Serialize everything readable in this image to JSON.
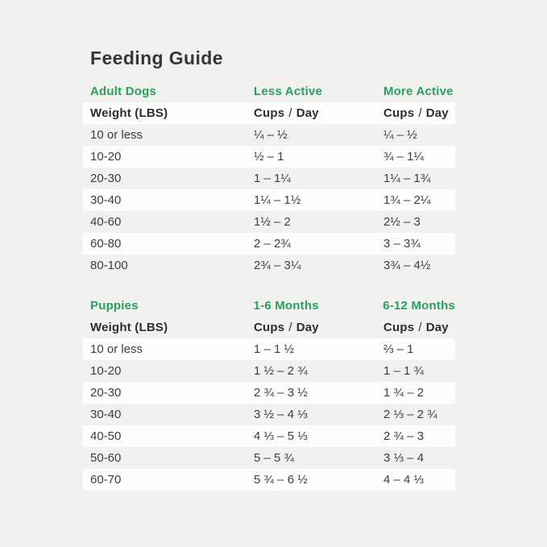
{
  "page_title": "Feeding Guide",
  "colors": {
    "background": "#f1f1ef",
    "row_band_white": "#fdfdfd",
    "accent_green": "#28a05b",
    "text_dark": "#3a3938"
  },
  "adult_table": {
    "heading": {
      "col1": "Adult Dogs",
      "col2": "Less Active",
      "col3": "More Active"
    },
    "subheading": {
      "col1": "Weight (LBS)",
      "col2": {
        "word1": "Cups",
        "slash": "/",
        "word2": "Day"
      },
      "col3": {
        "word1": "Cups",
        "slash": "/",
        "word2": "Day"
      }
    },
    "rows": [
      {
        "weight": "10 or less",
        "col2": "¼ – ½",
        "col3": "¼ – ½"
      },
      {
        "weight": "10-20",
        "col2": "½ – 1",
        "col3": "¾ – 1¼"
      },
      {
        "weight": "20-30",
        "col2": "1 – 1¼",
        "col3": "1¼ – 1¾"
      },
      {
        "weight": "30-40",
        "col2": "1¼ – 1½",
        "col3": "1¾ – 2¼"
      },
      {
        "weight": "40-60",
        "col2": "1½ – 2",
        "col3": "2½ – 3"
      },
      {
        "weight": "60-80",
        "col2": "2 – 2¾",
        "col3": "3 – 3¾"
      },
      {
        "weight": "80-100",
        "col2": "2¾ – 3¼",
        "col3": "3¾ – 4½"
      }
    ]
  },
  "puppy_table": {
    "heading": {
      "col1": "Puppies",
      "col2": "1-6 Months",
      "col3": "6-12 Months"
    },
    "subheading": {
      "col1": "Weight (LBS)",
      "col2": {
        "word1": "Cups",
        "slash": "/",
        "word2": "Day"
      },
      "col3": {
        "word1": "Cups",
        "slash": "/",
        "word2": "Day"
      }
    },
    "rows": [
      {
        "weight": "10 or less",
        "col2": "1 – 1 ½",
        "col3": "⅔ – 1"
      },
      {
        "weight": "10-20",
        "col2": "1 ½ – 2 ¾",
        "col3": "1 – 1 ¾"
      },
      {
        "weight": "20-30",
        "col2": "2 ¾ – 3 ½",
        "col3": "1 ¾ – 2"
      },
      {
        "weight": "30-40",
        "col2": "3 ½ – 4 ⅓",
        "col3": "2 ⅓ – 2 ¾"
      },
      {
        "weight": "40-50",
        "col2": "4 ⅓ – 5 ⅓",
        "col3": "2 ¾ – 3"
      },
      {
        "weight": "50-60",
        "col2": "5 – 5 ¾",
        "col3": "3 ⅓ – 4"
      },
      {
        "weight": "60-70",
        "col2": "5 ¾ – 6 ½",
        "col3": "4 – 4 ⅓"
      }
    ]
  }
}
